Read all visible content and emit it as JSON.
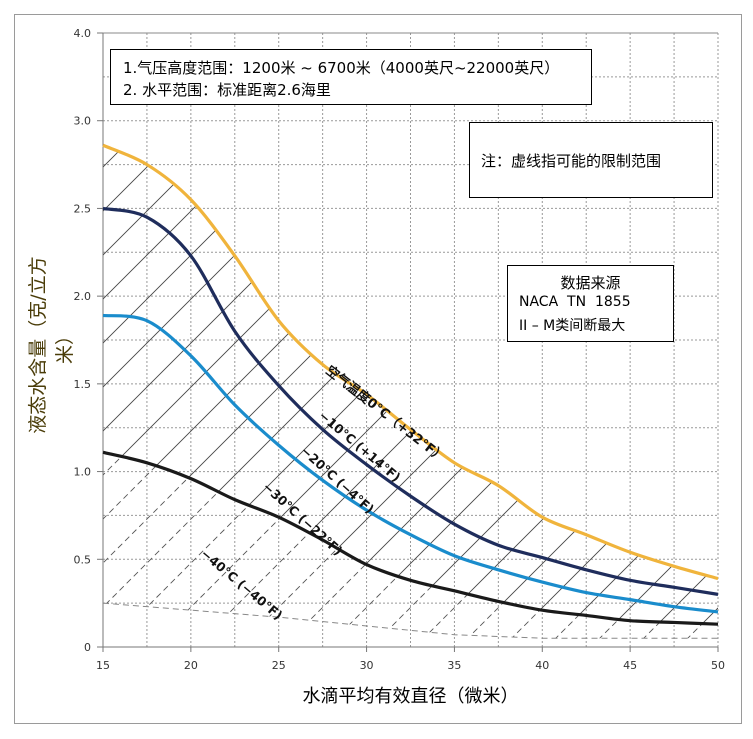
{
  "chart_data": {
    "type": "line",
    "xlabel": "水滴平均有效直径（微米）",
    "ylabel": "液态水含量（克/立方米）",
    "xlim": [
      15,
      50
    ],
    "xticks": [
      15,
      20,
      25,
      30,
      35,
      40,
      45,
      50
    ],
    "yticks": [
      "0",
      "0.5",
      "1.0",
      "1.5",
      "2.0",
      "2.5",
      "3.0",
      "4.0"
    ],
    "ytick_values": [
      0,
      0.5,
      1.0,
      1.5,
      2.0,
      2.5,
      3.0,
      4.0
    ],
    "grid": true,
    "x": [
      15,
      17.5,
      20,
      22.5,
      25,
      27.5,
      30,
      32.5,
      35,
      37.5,
      40,
      42.5,
      45,
      47.5,
      50
    ],
    "series": [
      {
        "name": "空气温度0°C（+32°F）",
        "color": "#f0b43c",
        "values": [
          2.86,
          2.75,
          2.55,
          2.23,
          1.86,
          1.61,
          1.44,
          1.24,
          1.05,
          0.92,
          0.74,
          0.64,
          0.54,
          0.46,
          0.39
        ]
      },
      {
        "name": "−10°C (+14°F)",
        "color": "#1f2d5c",
        "values": [
          2.5,
          2.45,
          2.23,
          1.8,
          1.49,
          1.24,
          1.04,
          0.86,
          0.7,
          0.58,
          0.51,
          0.44,
          0.38,
          0.34,
          0.3
        ]
      },
      {
        "name": "−20°C (−4°F)",
        "color": "#1a8ccc",
        "values": [
          1.89,
          1.86,
          1.66,
          1.38,
          1.15,
          0.95,
          0.78,
          0.64,
          0.52,
          0.44,
          0.37,
          0.31,
          0.27,
          0.23,
          0.2
        ]
      },
      {
        "name": "−30°C (−22°F)",
        "color": "#1a1a1a",
        "values": [
          1.11,
          1.05,
          0.96,
          0.84,
          0.74,
          0.61,
          0.47,
          0.38,
          0.32,
          0.26,
          0.21,
          0.18,
          0.15,
          0.14,
          0.13
        ]
      }
    ],
    "lower_limit": {
      "x": [
        15,
        20,
        25,
        30,
        35,
        40,
        50
      ],
      "values": [
        0.25,
        0.21,
        0.17,
        0.12,
        0.07,
        0.05,
        0.05
      ],
      "color": "#888888"
    },
    "extra_labels": [
      "−40°C (−40°F)"
    ],
    "annotations": {
      "range_notes": [
        "1.气压高度范围：1200米 ~ 6700米（4000英尺~22000英尺）",
        "2. 水平范围：标准距离2.6海里"
      ],
      "note": "注：虚线指可能的限制范围",
      "source_title": "数据来源",
      "source_lines": [
        "NACA  TN  1855",
        "II – M类间断最大"
      ]
    }
  }
}
